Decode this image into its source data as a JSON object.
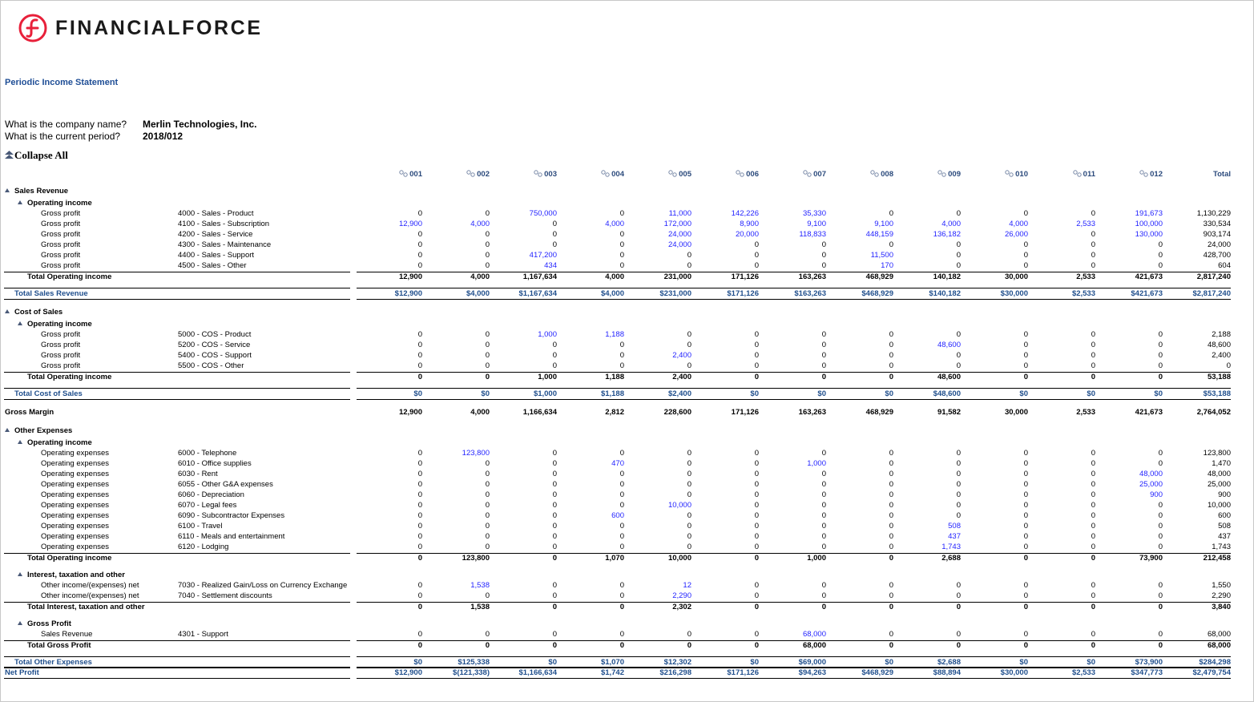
{
  "brand": {
    "name": "FINANCIALFORCE",
    "color": "#e8203a"
  },
  "report_title": "Periodic Income Statement",
  "prompts": [
    {
      "label": "What is the company name?",
      "value": "Merlin Technologies, Inc."
    },
    {
      "label": "What is the current period?",
      "value": "2018/012"
    }
  ],
  "collapse_all": "Collapse All",
  "colors": {
    "title": "#1f4e96",
    "value_link": "#2323ff",
    "total_text": "#1f4e8c"
  },
  "columns": [
    "001",
    "002",
    "003",
    "004",
    "005",
    "006",
    "007",
    "008",
    "009",
    "010",
    "011",
    "012",
    "Total"
  ],
  "rows": [
    {
      "type": "sec",
      "label": "Sales Revenue"
    },
    {
      "type": "grp",
      "label": "Operating income"
    },
    {
      "type": "det",
      "label": "Gross profit",
      "account": "4000 - Sales - Product",
      "values": [
        "0",
        "0",
        "750,000",
        "0",
        "11,000",
        "142,226",
        "35,330",
        "0",
        "0",
        "0",
        "0",
        "191,673",
        "1,130,229"
      ]
    },
    {
      "type": "det",
      "label": "Gross profit",
      "account": "4100 - Sales - Subscription",
      "values": [
        "12,900",
        "4,000",
        "0",
        "4,000",
        "172,000",
        "8,900",
        "9,100",
        "9,100",
        "4,000",
        "4,000",
        "2,533",
        "100,000",
        "330,534"
      ]
    },
    {
      "type": "det",
      "label": "Gross profit",
      "account": "4200 - Sales - Service",
      "values": [
        "0",
        "0",
        "0",
        "0",
        "24,000",
        "20,000",
        "118,833",
        "448,159",
        "136,182",
        "26,000",
        "0",
        "130,000",
        "903,174"
      ]
    },
    {
      "type": "det",
      "label": "Gross profit",
      "account": "4300 - Sales - Maintenance",
      "values": [
        "0",
        "0",
        "0",
        "0",
        "24,000",
        "0",
        "0",
        "0",
        "0",
        "0",
        "0",
        "0",
        "24,000"
      ]
    },
    {
      "type": "det",
      "label": "Gross profit",
      "account": "4400 - Sales - Support",
      "values": [
        "0",
        "0",
        "417,200",
        "0",
        "0",
        "0",
        "0",
        "11,500",
        "0",
        "0",
        "0",
        "0",
        "428,700"
      ]
    },
    {
      "type": "det",
      "label": "Gross profit",
      "account": "4500 - Sales - Other",
      "values": [
        "0",
        "0",
        "434",
        "0",
        "0",
        "0",
        "0",
        "170",
        "0",
        "0",
        "0",
        "0",
        "604"
      ]
    },
    {
      "type": "sub",
      "label": "Total Operating income",
      "values": [
        "12,900",
        "4,000",
        "1,167,634",
        "4,000",
        "231,000",
        "171,126",
        "163,263",
        "468,929",
        "140,182",
        "30,000",
        "2,533",
        "421,673",
        "2,817,240"
      ]
    },
    {
      "type": "tot",
      "label": "Total Sales Revenue",
      "values": [
        "$12,900",
        "$4,000",
        "$1,167,634",
        "$4,000",
        "$231,000",
        "$171,126",
        "$163,263",
        "$468,929",
        "$140,182",
        "$30,000",
        "$2,533",
        "$421,673",
        "$2,817,240"
      ]
    },
    {
      "type": "sec2",
      "label": "Cost of Sales"
    },
    {
      "type": "grp",
      "label": "Operating income"
    },
    {
      "type": "det",
      "label": "Gross profit",
      "account": "5000 - COS - Product",
      "values": [
        "0",
        "0",
        "1,000",
        "1,188",
        "0",
        "0",
        "0",
        "0",
        "0",
        "0",
        "0",
        "0",
        "2,188"
      ]
    },
    {
      "type": "det",
      "label": "Gross profit",
      "account": "5200 - COS - Service",
      "values": [
        "0",
        "0",
        "0",
        "0",
        "0",
        "0",
        "0",
        "0",
        "48,600",
        "0",
        "0",
        "0",
        "48,600"
      ]
    },
    {
      "type": "det",
      "label": "Gross profit",
      "account": "5400 - COS - Support",
      "values": [
        "0",
        "0",
        "0",
        "0",
        "2,400",
        "0",
        "0",
        "0",
        "0",
        "0",
        "0",
        "0",
        "2,400"
      ]
    },
    {
      "type": "det",
      "label": "Gross profit",
      "account": "5500 - COS - Other",
      "values": [
        "0",
        "0",
        "0",
        "0",
        "0",
        "0",
        "0",
        "0",
        "0",
        "0",
        "0",
        "0",
        "0"
      ]
    },
    {
      "type": "sub",
      "label": "Total Operating income",
      "values": [
        "0",
        "0",
        "1,000",
        "1,188",
        "2,400",
        "0",
        "0",
        "0",
        "48,600",
        "0",
        "0",
        "0",
        "53,188"
      ]
    },
    {
      "type": "tot",
      "label": "Total Cost of Sales",
      "values": [
        "$0",
        "$0",
        "$1,000",
        "$1,188",
        "$2,400",
        "$0",
        "$0",
        "$0",
        "$48,600",
        "$0",
        "$0",
        "$0",
        "$53,188"
      ]
    },
    {
      "type": "gm",
      "label": "Gross Margin",
      "values": [
        "12,900",
        "4,000",
        "1,166,634",
        "2,812",
        "228,600",
        "171,126",
        "163,263",
        "468,929",
        "91,582",
        "30,000",
        "2,533",
        "421,673",
        "2,764,052"
      ]
    },
    {
      "type": "sec2",
      "label": "Other Expenses"
    },
    {
      "type": "grp",
      "label": "Operating income"
    },
    {
      "type": "det",
      "label": "Operating expenses",
      "account": "6000 - Telephone",
      "values": [
        "0",
        "123,800",
        "0",
        "0",
        "0",
        "0",
        "0",
        "0",
        "0",
        "0",
        "0",
        "0",
        "123,800"
      ]
    },
    {
      "type": "det",
      "label": "Operating expenses",
      "account": "6010 - Office supplies",
      "values": [
        "0",
        "0",
        "0",
        "470",
        "0",
        "0",
        "1,000",
        "0",
        "0",
        "0",
        "0",
        "0",
        "1,470"
      ]
    },
    {
      "type": "det",
      "label": "Operating expenses",
      "account": "6030 - Rent",
      "values": [
        "0",
        "0",
        "0",
        "0",
        "0",
        "0",
        "0",
        "0",
        "0",
        "0",
        "0",
        "48,000",
        "48,000"
      ]
    },
    {
      "type": "det",
      "label": "Operating expenses",
      "account": "6055 - Other G&A expenses",
      "values": [
        "0",
        "0",
        "0",
        "0",
        "0",
        "0",
        "0",
        "0",
        "0",
        "0",
        "0",
        "25,000",
        "25,000"
      ]
    },
    {
      "type": "det",
      "label": "Operating expenses",
      "account": "6060 - Depreciation",
      "values": [
        "0",
        "0",
        "0",
        "0",
        "0",
        "0",
        "0",
        "0",
        "0",
        "0",
        "0",
        "900",
        "900"
      ]
    },
    {
      "type": "det",
      "label": "Operating expenses",
      "account": "6070 - Legal fees",
      "values": [
        "0",
        "0",
        "0",
        "0",
        "10,000",
        "0",
        "0",
        "0",
        "0",
        "0",
        "0",
        "0",
        "10,000"
      ]
    },
    {
      "type": "det",
      "label": "Operating expenses",
      "account": "6090 - Subcontractor Expenses",
      "values": [
        "0",
        "0",
        "0",
        "600",
        "0",
        "0",
        "0",
        "0",
        "0",
        "0",
        "0",
        "0",
        "600"
      ]
    },
    {
      "type": "det",
      "label": "Operating expenses",
      "account": "6100 - Travel",
      "values": [
        "0",
        "0",
        "0",
        "0",
        "0",
        "0",
        "0",
        "0",
        "508",
        "0",
        "0",
        "0",
        "508"
      ]
    },
    {
      "type": "det",
      "label": "Operating expenses",
      "account": "6110 - Meals and entertainment",
      "values": [
        "0",
        "0",
        "0",
        "0",
        "0",
        "0",
        "0",
        "0",
        "437",
        "0",
        "0",
        "0",
        "437"
      ]
    },
    {
      "type": "det",
      "label": "Operating expenses",
      "account": "6120 - Lodging",
      "values": [
        "0",
        "0",
        "0",
        "0",
        "0",
        "0",
        "0",
        "0",
        "1,743",
        "0",
        "0",
        "0",
        "1,743"
      ]
    },
    {
      "type": "sub",
      "label": "Total Operating income",
      "values": [
        "0",
        "123,800",
        "0",
        "1,070",
        "10,000",
        "0",
        "1,000",
        "0",
        "2,688",
        "0",
        "0",
        "73,900",
        "212,458"
      ]
    },
    {
      "type": "grp2",
      "label": "Interest, taxation and other"
    },
    {
      "type": "det",
      "label": "Other income/(expenses) net",
      "account": "7030 - Realized Gain/Loss on Currency Exchange",
      "values": [
        "0",
        "1,538",
        "0",
        "0",
        "12",
        "0",
        "0",
        "0",
        "0",
        "0",
        "0",
        "0",
        "1,550"
      ]
    },
    {
      "type": "det",
      "label": "Other income/(expenses) net",
      "account": "7040 - Settlement discounts",
      "values": [
        "0",
        "0",
        "0",
        "0",
        "2,290",
        "0",
        "0",
        "0",
        "0",
        "0",
        "0",
        "0",
        "2,290"
      ]
    },
    {
      "type": "sub",
      "label": "Total Interest, taxation and other",
      "values": [
        "0",
        "1,538",
        "0",
        "0",
        "2,302",
        "0",
        "0",
        "0",
        "0",
        "0",
        "0",
        "0",
        "3,840"
      ]
    },
    {
      "type": "grp2",
      "label": "Gross Profit"
    },
    {
      "type": "det",
      "label": "Sales Revenue",
      "account": "4301 - Support",
      "values": [
        "0",
        "0",
        "0",
        "0",
        "0",
        "0",
        "68,000",
        "0",
        "0",
        "0",
        "0",
        "0",
        "68,000"
      ]
    },
    {
      "type": "sub",
      "label": "Total Gross Profit",
      "values": [
        "0",
        "0",
        "0",
        "0",
        "0",
        "0",
        "68,000",
        "0",
        "0",
        "0",
        "0",
        "0",
        "68,000"
      ]
    },
    {
      "type": "tot",
      "label": "Total Other Expenses",
      "values": [
        "$0",
        "$125,338",
        "$0",
        "$1,070",
        "$12,302",
        "$0",
        "$69,000",
        "$0",
        "$2,688",
        "$0",
        "$0",
        "$73,900",
        "$284,298"
      ]
    },
    {
      "type": "net",
      "label": "Net Profit",
      "values": [
        "$12,900",
        "$(121,338)",
        "$1,166,634",
        "$1,742",
        "$216,298",
        "$171,126",
        "$94,263",
        "$468,929",
        "$88,894",
        "$30,000",
        "$2,533",
        "$347,773",
        "$2,479,754"
      ]
    }
  ]
}
